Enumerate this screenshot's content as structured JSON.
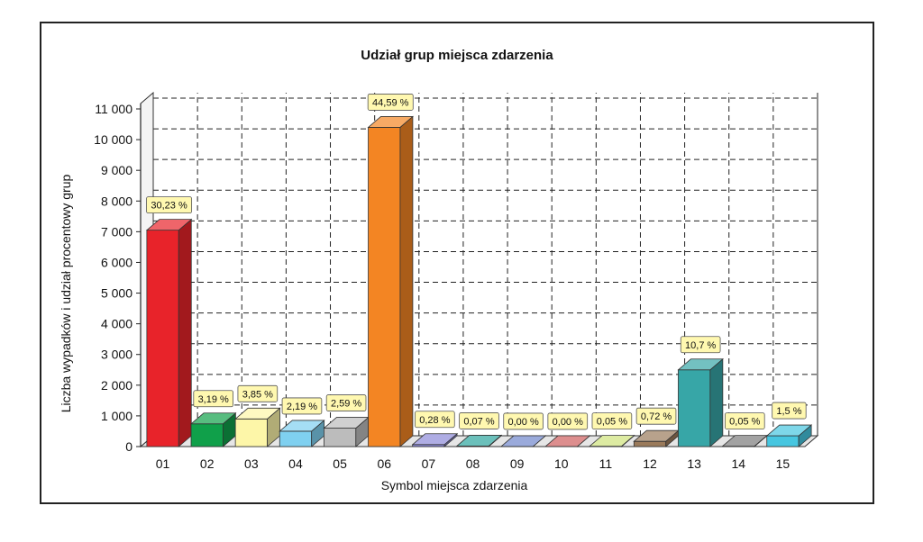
{
  "chart_data": {
    "type": "bar",
    "title": "Udział grup miejsca zdarzenia",
    "xlabel": "Symbol miejsca zdarzenia",
    "ylabel": "Liczba wypadków i udział procentowy grup",
    "ylim": [
      0,
      11000
    ],
    "y_ticks": [
      "0",
      "1 000",
      "2 000",
      "3 000",
      "4 000",
      "5 000",
      "6 000",
      "7 000",
      "8 000",
      "9 000",
      "10 000",
      "11 000"
    ],
    "grid": true,
    "categories": [
      "01",
      "02",
      "03",
      "04",
      "05",
      "06",
      "07",
      "08",
      "09",
      "10",
      "11",
      "12",
      "13",
      "14",
      "15"
    ],
    "values": [
      7050,
      740,
      900,
      500,
      600,
      10400,
      65,
      16,
      2,
      2,
      12,
      170,
      2500,
      12,
      350
    ],
    "labels": [
      "30,23 %",
      "3,19 %",
      "3,85 %",
      "2,19 %",
      "2,59 %",
      "44,59 %",
      "0,28 %",
      "0,07 %",
      "0,00 %",
      "0,00 %",
      "0,05 %",
      "0,72 %",
      "10,7 %",
      "0,05 %",
      "1,5 %"
    ],
    "colors": [
      "#e8232a",
      "#10a04a",
      "#fdf6a8",
      "#7fd0f0",
      "#bcbcbc",
      "#f38523",
      "#8c8ad8",
      "#2ba59e",
      "#6f86cc",
      "#cf5e5e",
      "#cfe27a",
      "#9a7a5a",
      "#37a6a7",
      "#7a7a7a",
      "#46c6e0"
    ]
  }
}
